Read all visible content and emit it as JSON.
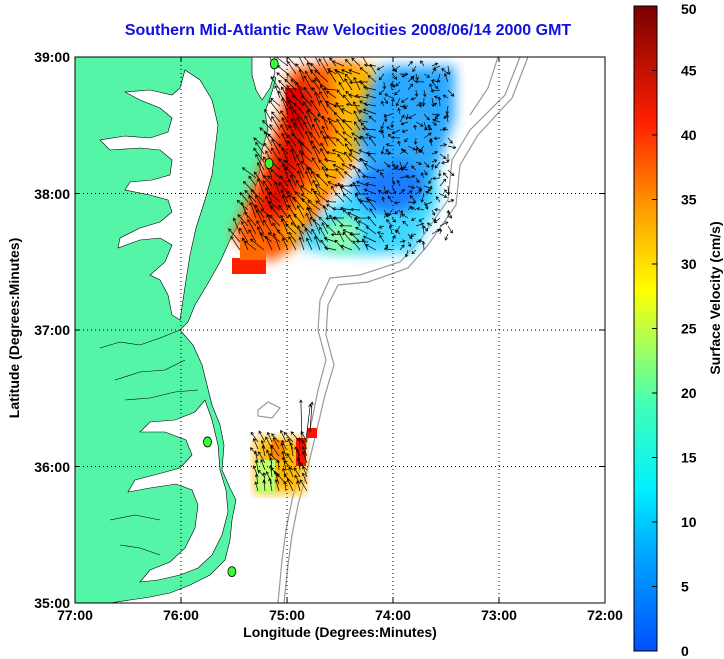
{
  "title": "Southern Mid-Atlantic Raw Velocities 2008/06/14 2000 GMT",
  "xlabel": "Longitude (Degrees:Minutes)",
  "ylabel": "Latitude (Degrees:Minutes)",
  "colorbar": {
    "label": "Surface Velocity (cm/s)",
    "ticks": [
      "0",
      "5",
      "10",
      "15",
      "20",
      "25",
      "30",
      "35",
      "40",
      "45",
      "50"
    ],
    "range": [
      0,
      50
    ],
    "colors": [
      "#0060ff",
      "#00d8ff",
      "#60ffb0",
      "#f0ff10",
      "#ff9000",
      "#ff1000",
      "#7a0000"
    ]
  },
  "map": {
    "lon_ticks": [
      "77:00",
      "76:00",
      "75:00",
      "74:00",
      "73:00",
      "72:00"
    ],
    "lat_ticks": [
      "35:00",
      "36:00",
      "37:00",
      "38:00",
      "39:00"
    ],
    "lon_range": [
      -77,
      -72
    ],
    "lat_range": [
      35,
      39
    ],
    "land_color": "#55f5a8",
    "grid": "dotted",
    "stations": [
      {
        "lon": -75.12,
        "lat": 38.95
      },
      {
        "lon": -75.17,
        "lat": 38.22
      },
      {
        "lon": -75.75,
        "lat": 36.18
      },
      {
        "lon": -75.52,
        "lat": 35.23
      }
    ]
  }
}
